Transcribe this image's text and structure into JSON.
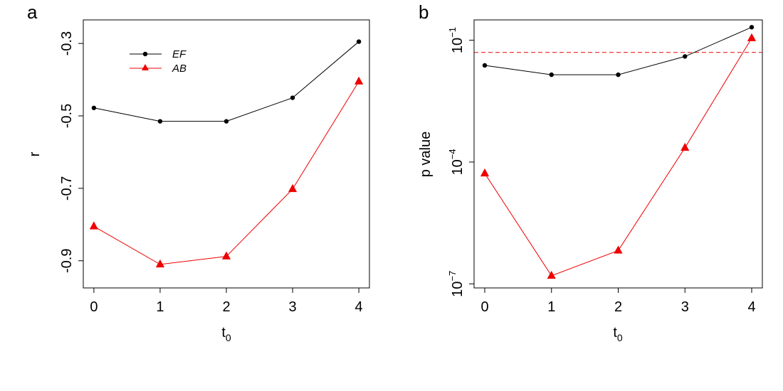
{
  "chart_data": [
    {
      "type": "line",
      "panel_label": "a",
      "xlabel_base": "t",
      "xlabel_sub": "0",
      "ylabel": "r",
      "x": [
        0,
        1,
        2,
        3,
        4
      ],
      "x_tick_labels": [
        "0",
        "1",
        "2",
        "3",
        "4"
      ],
      "y_ticks": [
        -0.9,
        -0.7,
        -0.5,
        -0.3
      ],
      "y_tick_labels": [
        "-0.9",
        "-0.7",
        "-0.5",
        "-0.3"
      ],
      "xlim": [
        -0.16,
        4.16
      ],
      "ylim": [
        -0.975,
        -0.235
      ],
      "legend_position": "top-left",
      "series": [
        {
          "name": "EF",
          "color": "#000000",
          "marker": "circle",
          "values": [
            -0.478,
            -0.515,
            -0.515,
            -0.45,
            -0.295
          ]
        },
        {
          "name": "AB",
          "color": "#ee0000",
          "marker": "triangle",
          "values": [
            -0.805,
            -0.91,
            -0.888,
            -0.702,
            -0.405
          ]
        }
      ]
    },
    {
      "type": "line",
      "panel_label": "b",
      "xlabel_base": "t",
      "xlabel_sub": "0",
      "ylabel": "p value",
      "yscale": "log10",
      "x": [
        0,
        1,
        2,
        3,
        4
      ],
      "x_tick_labels": [
        "0",
        "1",
        "2",
        "3",
        "4"
      ],
      "y_ticks_log10": [
        -7,
        -4,
        -1
      ],
      "y_tick_labels": [
        {
          "base": "10",
          "exp": "−7"
        },
        {
          "base": "10",
          "exp": "−4"
        },
        {
          "base": "10",
          "exp": "−1"
        }
      ],
      "xlim": [
        -0.16,
        4.16
      ],
      "ylim_log10": [
        -7.1,
        -0.5
      ],
      "reference_line": {
        "value_log10": -1.301,
        "color": "#ee0000",
        "style": "dashed"
      },
      "series": [
        {
          "name": "EF",
          "color": "#000000",
          "marker": "circle",
          "values_log10": [
            -1.62,
            -1.85,
            -1.85,
            -1.4,
            -0.68
          ]
        },
        {
          "name": "AB",
          "color": "#ee0000",
          "marker": "triangle",
          "values_log10": [
            -4.28,
            -6.8,
            -6.18,
            -3.65,
            -0.95
          ]
        }
      ]
    }
  ]
}
